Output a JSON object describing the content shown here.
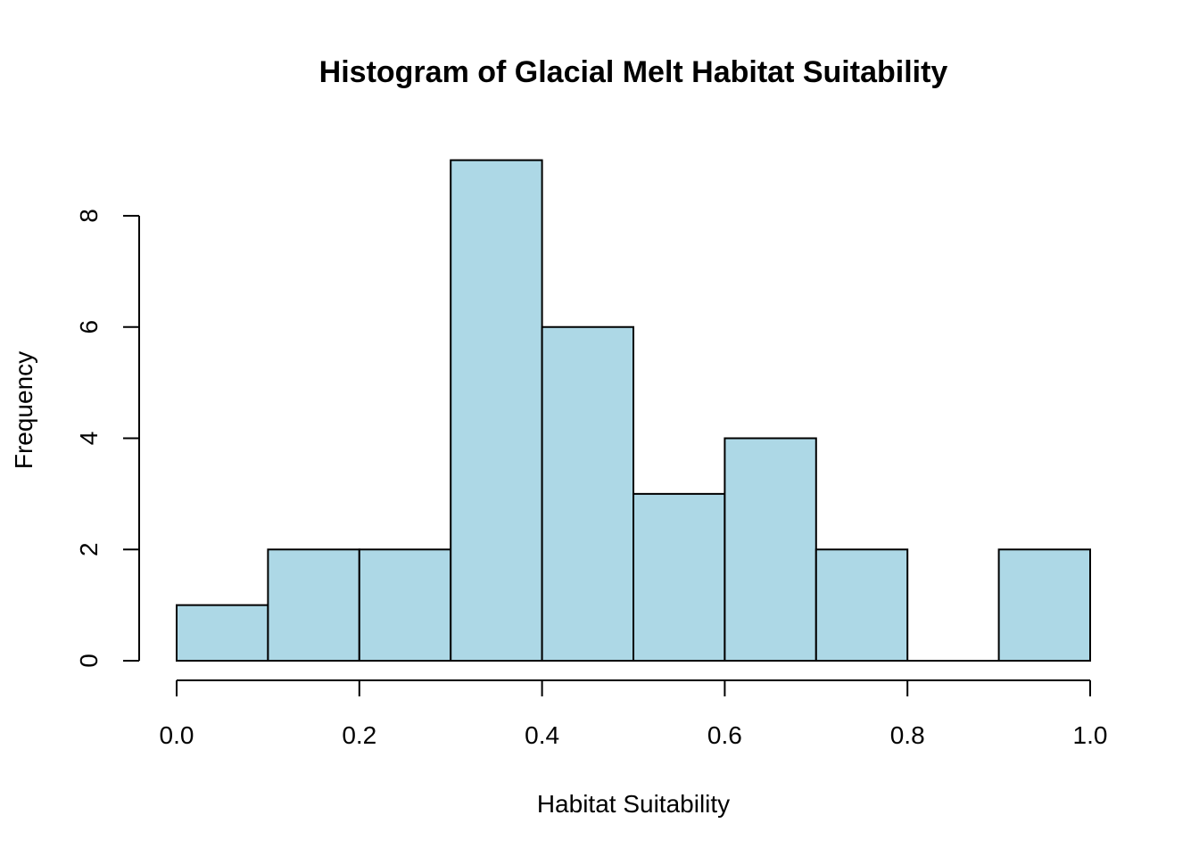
{
  "chart_data": {
    "type": "bar",
    "title": "Histogram of Glacial Melt Habitat Suitability",
    "xlabel": "Habitat Suitability",
    "ylabel": "Frequency",
    "bins": [
      {
        "start": 0.0,
        "end": 0.1,
        "count": 1
      },
      {
        "start": 0.1,
        "end": 0.2,
        "count": 2
      },
      {
        "start": 0.2,
        "end": 0.3,
        "count": 2
      },
      {
        "start": 0.3,
        "end": 0.4,
        "count": 9
      },
      {
        "start": 0.4,
        "end": 0.5,
        "count": 6
      },
      {
        "start": 0.5,
        "end": 0.6,
        "count": 3
      },
      {
        "start": 0.6,
        "end": 0.7,
        "count": 4
      },
      {
        "start": 0.7,
        "end": 0.8,
        "count": 2
      },
      {
        "start": 0.8,
        "end": 0.9,
        "count": 0
      },
      {
        "start": 0.9,
        "end": 1.0,
        "count": 2
      }
    ],
    "xlim": [
      0.0,
      1.0
    ],
    "ylim": [
      0,
      9
    ],
    "x_ticks": [
      "0.0",
      "0.2",
      "0.4",
      "0.6",
      "0.8",
      "1.0"
    ],
    "y_ticks": [
      "0",
      "2",
      "4",
      "6",
      "8"
    ],
    "bar_color": "#add8e6",
    "grid": false
  }
}
